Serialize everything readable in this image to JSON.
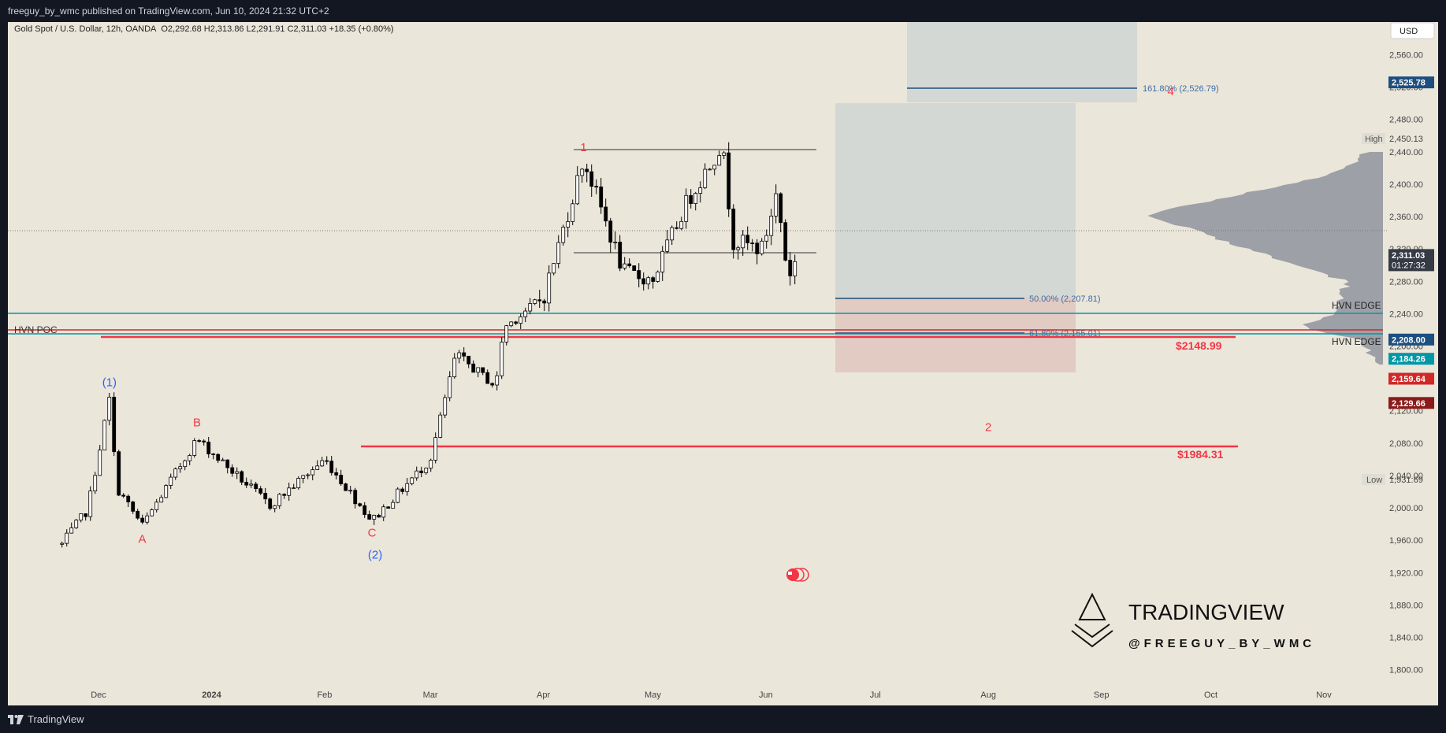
{
  "header": {
    "publish_line": "freeguy_by_wmc published on TradingView.com, Jun 10, 2024 21:32 UTC+2"
  },
  "legend": {
    "symbol": "Gold Spot / U.S. Dollar, 12h, OANDA",
    "ohlc": "O2,292.68  H2,313.86  L2,291.91  C2,311.03  +18.35 (+0.80%)"
  },
  "currency_button": "USD",
  "footer": {
    "brand": "TradingView"
  },
  "watermark": {
    "title": "TRADINGVIEW",
    "handle": "@FREEGUY_BY_WMC"
  },
  "colors": {
    "background": "#ebe6da",
    "red": "#f23645",
    "blue": "#2962ff",
    "teal": "#0097a7",
    "navy": "#1c4e80"
  },
  "chart_data": {
    "type": "candlestick",
    "symbol": "XAUUSD",
    "timeframe": "12h",
    "y_ticks": [
      "1,800.00",
      "1,840.00",
      "1,880.00",
      "1,920.00",
      "1,960.00",
      "2,000.00",
      "2,040.00",
      "2,080.00",
      "2,120.00",
      "2,160.00",
      "2,200.00",
      "2,240.00",
      "2,280.00",
      "2,320.00",
      "2,360.00",
      "2,400.00",
      "2,440.00",
      "2,480.00",
      "2,520.00",
      "2,560.00"
    ],
    "ylim": [
      1780,
      2610
    ],
    "x_ticks": [
      "Dec",
      "2024",
      "Feb",
      "Mar",
      "Apr",
      "May",
      "Jun",
      "Jul",
      "Aug",
      "Sep",
      "Oct",
      "Nov"
    ],
    "anchors": [
      {
        "date": "2023-11-21",
        "price": 1955
      },
      {
        "date": "2023-11-28",
        "price": 1998
      },
      {
        "date": "2023-12-04",
        "price": 2135
      },
      {
        "date": "2023-12-06",
        "price": 2025
      },
      {
        "date": "2023-12-13",
        "price": 1978
      },
      {
        "date": "2023-12-28",
        "price": 2085
      },
      {
        "date": "2024-01-17",
        "price": 2003
      },
      {
        "date": "2024-02-01",
        "price": 2060
      },
      {
        "date": "2024-02-14",
        "price": 1984
      },
      {
        "date": "2024-03-01",
        "price": 2060
      },
      {
        "date": "2024-03-08",
        "price": 2190
      },
      {
        "date": "2024-03-19",
        "price": 2150
      },
      {
        "date": "2024-03-21",
        "price": 2222
      },
      {
        "date": "2024-04-01",
        "price": 2260
      },
      {
        "date": "2024-04-12",
        "price": 2431
      },
      {
        "date": "2024-04-23",
        "price": 2291
      },
      {
        "date": "2024-05-01",
        "price": 2282
      },
      {
        "date": "2024-05-10",
        "price": 2375
      },
      {
        "date": "2024-05-20",
        "price": 2450
      },
      {
        "date": "2024-05-23",
        "price": 2330
      },
      {
        "date": "2024-05-31",
        "price": 2320
      },
      {
        "date": "2024-06-04",
        "price": 2390
      },
      {
        "date": "2024-06-07",
        "price": 2286
      },
      {
        "date": "2024-06-10",
        "price": 2311
      }
    ],
    "high": "2,450.13",
    "low": "1,931.69",
    "price_labels": [
      {
        "value": 2525.78,
        "text": "2,525.78",
        "color": "#1c4e80"
      },
      {
        "value": 2311.03,
        "text": "2,311.03",
        "sub": "01:27:32",
        "color": "#363a45"
      },
      {
        "value": 2208.0,
        "text": "2,208.00",
        "color": "#1c4e80"
      },
      {
        "value": 2184.26,
        "text": "2,184.26",
        "color": "#0097a7"
      },
      {
        "value": 2159.64,
        "text": "2,159.64",
        "color": "#d12828"
      },
      {
        "value": 2129.66,
        "text": "2,129.66",
        "color": "#8b1a1a"
      }
    ],
    "horizontal_levels": [
      {
        "label": "HVN POC",
        "value": 2160
      },
      {
        "label": "HVN EDGE",
        "value": 2184.26
      },
      {
        "label": "HVN EDGE",
        "value": 2155
      },
      {
        "label": "$2148.99",
        "value": 2148.99
      },
      {
        "label": "$1984.31",
        "value": 1984.31
      }
    ],
    "fib_levels": [
      {
        "label": "161.80% (2,526.79)",
        "value": 2526.79
      },
      {
        "label": "50.00% (2,207.81)",
        "value": 2207.81
      },
      {
        "label": "61.80% (2,155.01)",
        "value": 2155.01
      }
    ],
    "wave_labels": [
      {
        "text": "(1)",
        "date": "2023-12-04",
        "price": 2135,
        "color": "blue"
      },
      {
        "text": "A",
        "date": "2023-12-13",
        "price": 1978,
        "color": "red"
      },
      {
        "text": "B",
        "date": "2023-12-28",
        "price": 2085,
        "color": "red"
      },
      {
        "text": "C",
        "date": "2024-02-14",
        "price": 1984,
        "color": "red"
      },
      {
        "text": "(2)",
        "date": "2024-02-14",
        "price": 1984,
        "color": "blue"
      },
      {
        "text": "1",
        "date": "2024-04-12",
        "price": 2431,
        "color": "red"
      },
      {
        "text": "2",
        "date": "2024-08-01",
        "price": 2095,
        "color": "red"
      },
      {
        "text": "4",
        "date": "2024-09-20",
        "price": 2510,
        "color": "red"
      }
    ]
  }
}
